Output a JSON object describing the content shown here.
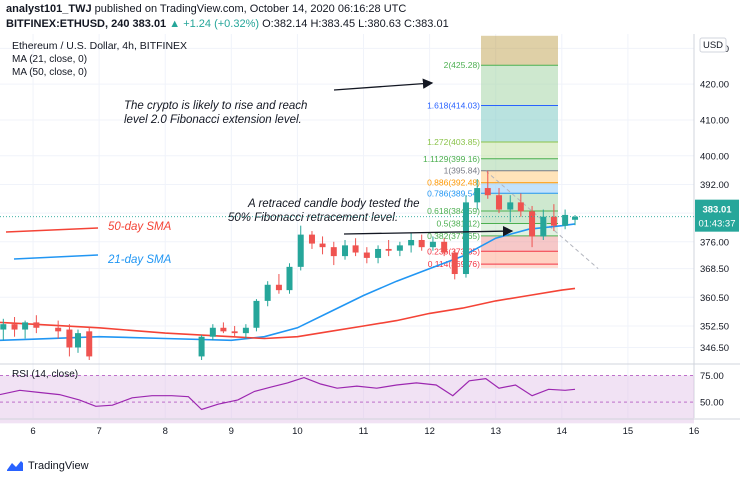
{
  "header": {
    "author": "analyst101_TWJ",
    "published_text": "published on TradingView.com, October 14, 2020 06:16:28 UTC",
    "symbol": "BITFINEX:ETHUSD, 240",
    "last": "383.01",
    "change": "+1.24 (+0.32%)",
    "o": "O:382.14",
    "h": "H:383.45",
    "l": "L:380.63",
    "c": "C:383.01"
  },
  "legend": {
    "title": "Ethereum / U.S. Dollar, 4h, BITFINEX",
    "ma21": "MA (21, close, 0)",
    "ma50": "MA (50, close, 0)"
  },
  "annotations": {
    "rise_line1": "The crypto is likely to rise and reach",
    "rise_line2": "level 2.0 Fibonacci extension level.",
    "retrace_line1": "A retraced candle body tested the",
    "retrace_line2": "50% Fibonacci retracement level.",
    "sma50": "50-day SMA",
    "sma21": "21-day SMA"
  },
  "price_tag": {
    "value": "383.01",
    "timer": "01:43:37"
  },
  "rsi": {
    "label": "RSI (14, close)",
    "ticks": [
      {
        "v": 75,
        "label": "75.00"
      },
      {
        "v": 50,
        "label": "50.00"
      }
    ]
  },
  "footer": {
    "brand": "TradingView"
  },
  "chart_data": {
    "type": "candlestick",
    "currency": "USD",
    "x_ticks": [
      6,
      7,
      8,
      9,
      10,
      11,
      12,
      13,
      14,
      15,
      16
    ],
    "y_ticks": [
      346.5,
      352.5,
      360.5,
      368.5,
      376.0,
      384.0,
      392.0,
      400.0,
      410.0,
      420.0,
      430.0
    ],
    "ylim": [
      343,
      434
    ],
    "xlim": [
      5.5,
      16.0
    ],
    "candles": [
      {
        "t": 5.55,
        "o": 351.5,
        "h": 354.5,
        "l": 348.5,
        "c": 353.0
      },
      {
        "t": 5.72,
        "o": 353.0,
        "h": 355.0,
        "l": 349.5,
        "c": 351.5
      },
      {
        "t": 5.88,
        "o": 351.5,
        "h": 354.0,
        "l": 349.0,
        "c": 353.5
      },
      {
        "t": 6.05,
        "o": 353.5,
        "h": 355.5,
        "l": 350.5,
        "c": 352.0
      },
      {
        "t": 6.38,
        "o": 352.0,
        "h": 354.0,
        "l": 349.0,
        "c": 351.0
      },
      {
        "t": 6.55,
        "o": 351.5,
        "h": 353.0,
        "l": 344.0,
        "c": 346.5
      },
      {
        "t": 6.68,
        "o": 346.5,
        "h": 351.5,
        "l": 345.0,
        "c": 350.5
      },
      {
        "t": 6.85,
        "o": 351.0,
        "h": 352.0,
        "l": 343.0,
        "c": 344.0
      },
      {
        "t": 8.55,
        "o": 344.0,
        "h": 350.0,
        "l": 343.0,
        "c": 349.5
      },
      {
        "t": 8.72,
        "o": 349.5,
        "h": 353.0,
        "l": 348.5,
        "c": 352.0
      },
      {
        "t": 8.88,
        "o": 352.0,
        "h": 353.5,
        "l": 350.5,
        "c": 351.0
      },
      {
        "t": 9.05,
        "o": 351.0,
        "h": 352.5,
        "l": 349.5,
        "c": 350.5
      },
      {
        "t": 9.22,
        "o": 350.5,
        "h": 353.0,
        "l": 349.0,
        "c": 352.0
      },
      {
        "t": 9.38,
        "o": 352.0,
        "h": 360.0,
        "l": 351.0,
        "c": 359.5
      },
      {
        "t": 9.55,
        "o": 359.5,
        "h": 365.0,
        "l": 358.0,
        "c": 364.0
      },
      {
        "t": 9.72,
        "o": 364.0,
        "h": 367.0,
        "l": 361.5,
        "c": 362.5
      },
      {
        "t": 9.88,
        "o": 362.5,
        "h": 370.0,
        "l": 361.5,
        "c": 369.0
      },
      {
        "t": 10.05,
        "o": 369.0,
        "h": 380.5,
        "l": 368.0,
        "c": 378.0
      },
      {
        "t": 10.22,
        "o": 378.0,
        "h": 379.0,
        "l": 374.0,
        "c": 375.5
      },
      {
        "t": 10.38,
        "o": 375.5,
        "h": 377.5,
        "l": 372.5,
        "c": 374.5
      },
      {
        "t": 10.55,
        "o": 374.5,
        "h": 376.0,
        "l": 369.5,
        "c": 372.0
      },
      {
        "t": 10.72,
        "o": 372.0,
        "h": 376.5,
        "l": 371.0,
        "c": 375.0
      },
      {
        "t": 10.88,
        "o": 375.0,
        "h": 377.0,
        "l": 372.0,
        "c": 373.0
      },
      {
        "t": 11.05,
        "o": 373.0,
        "h": 374.5,
        "l": 370.0,
        "c": 371.5
      },
      {
        "t": 11.22,
        "o": 371.5,
        "h": 375.0,
        "l": 370.0,
        "c": 374.0
      },
      {
        "t": 11.38,
        "o": 374.0,
        "h": 376.5,
        "l": 372.0,
        "c": 373.5
      },
      {
        "t": 11.55,
        "o": 373.5,
        "h": 376.0,
        "l": 372.0,
        "c": 375.0
      },
      {
        "t": 11.72,
        "o": 375.0,
        "h": 378.5,
        "l": 373.0,
        "c": 376.5
      },
      {
        "t": 11.88,
        "o": 376.5,
        "h": 378.0,
        "l": 373.5,
        "c": 374.5
      },
      {
        "t": 12.05,
        "o": 374.5,
        "h": 377.5,
        "l": 373.5,
        "c": 376.0
      },
      {
        "t": 12.22,
        "o": 376.0,
        "h": 377.0,
        "l": 372.0,
        "c": 373.0
      },
      {
        "t": 12.38,
        "o": 373.0,
        "h": 374.0,
        "l": 365.5,
        "c": 367.0
      },
      {
        "t": 12.55,
        "o": 367.0,
        "h": 389.0,
        "l": 366.0,
        "c": 387.0
      },
      {
        "t": 12.72,
        "o": 387.0,
        "h": 393.5,
        "l": 385.0,
        "c": 391.0
      },
      {
        "t": 12.88,
        "o": 391.0,
        "h": 395.8,
        "l": 388.0,
        "c": 389.0
      },
      {
        "t": 13.05,
        "o": 389.0,
        "h": 391.0,
        "l": 384.0,
        "c": 385.0
      },
      {
        "t": 13.22,
        "o": 385.0,
        "h": 389.0,
        "l": 381.5,
        "c": 387.0
      },
      {
        "t": 13.38,
        "o": 387.0,
        "h": 389.5,
        "l": 383.0,
        "c": 384.5
      },
      {
        "t": 13.55,
        "o": 384.5,
        "h": 386.0,
        "l": 374.5,
        "c": 377.5
      },
      {
        "t": 13.72,
        "o": 377.5,
        "h": 385.0,
        "l": 376.5,
        "c": 383.0
      },
      {
        "t": 13.88,
        "o": 383.0,
        "h": 386.5,
        "l": 379.0,
        "c": 380.5
      },
      {
        "t": 14.05,
        "o": 380.5,
        "h": 385.0,
        "l": 379.5,
        "c": 383.5
      },
      {
        "t": 14.2,
        "o": 382.14,
        "h": 383.45,
        "l": 380.63,
        "c": 383.01
      }
    ],
    "series": [
      {
        "name": "MA (21, close, 0)",
        "color": "#2196f3",
        "points": [
          [
            5.5,
            348.5
          ],
          [
            6.0,
            348.8
          ],
          [
            7.0,
            349.5
          ],
          [
            8.0,
            349.0
          ],
          [
            9.0,
            348.5
          ],
          [
            9.5,
            349.5
          ],
          [
            10.0,
            352.0
          ],
          [
            10.5,
            356.5
          ],
          [
            11.0,
            361.0
          ],
          [
            11.5,
            365.0
          ],
          [
            12.0,
            368.5
          ],
          [
            12.5,
            372.0
          ],
          [
            13.0,
            377.0
          ],
          [
            13.5,
            379.5
          ],
          [
            14.0,
            380.5
          ],
          [
            14.2,
            381.0
          ]
        ]
      },
      {
        "name": "MA (50, close, 0)",
        "color": "#f44336",
        "points": [
          [
            5.5,
            353.5
          ],
          [
            6.0,
            353.0
          ],
          [
            7.0,
            352.0
          ],
          [
            8.0,
            350.5
          ],
          [
            9.0,
            349.5
          ],
          [
            9.5,
            349.0
          ],
          [
            10.0,
            349.5
          ],
          [
            10.5,
            351.0
          ],
          [
            11.0,
            352.5
          ],
          [
            11.5,
            354.0
          ],
          [
            12.0,
            356.0
          ],
          [
            12.5,
            357.5
          ],
          [
            13.0,
            359.5
          ],
          [
            13.5,
            361.0
          ],
          [
            14.0,
            362.5
          ],
          [
            14.2,
            363.0
          ]
        ]
      }
    ],
    "fib_levels": [
      {
        "ratio": "2",
        "value": 425.28,
        "label": "2(425.28)",
        "color": "#4caf50"
      },
      {
        "ratio": "1.618",
        "value": 414.03,
        "label": "1.618(414.03)",
        "color": "#2962ff"
      },
      {
        "ratio": "1.272",
        "value": 403.85,
        "label": "1.272(403.85)",
        "color": "#8bc34a"
      },
      {
        "ratio": "1.1129",
        "value": 399.16,
        "label": "1.1129(399.16)",
        "color": "#4caf50"
      },
      {
        "ratio": "1",
        "value": 395.84,
        "label": "1(395.84)",
        "color": "#787b86"
      },
      {
        "ratio": "0.886",
        "value": 392.48,
        "label": "0.886(392.48)",
        "color": "#ff9800"
      },
      {
        "ratio": "0.786",
        "value": 389.54,
        "label": "0.786(389.54)",
        "color": "#2196f3"
      },
      {
        "ratio": "0.618",
        "value": 384.59,
        "label": "0.618(384.59)",
        "color": "#4caf50"
      },
      {
        "ratio": "0.5",
        "value": 381.12,
        "label": "0.5(381.12)",
        "color": "#4caf50"
      },
      {
        "ratio": "0.382",
        "value": 377.65,
        "label": "0.382(377.65)",
        "color": "#4caf50"
      },
      {
        "ratio": "0.236",
        "value": 373.35,
        "label": "0.236(373.35)",
        "color": "#f23645"
      },
      {
        "ratio": "0.114",
        "value": 369.76,
        "label": "0.114(369.76)",
        "color": "#f23645"
      }
    ],
    "rsi_values": [
      [
        5.5,
        57
      ],
      [
        5.8,
        61
      ],
      [
        6.1,
        59
      ],
      [
        6.4,
        57
      ],
      [
        6.7,
        52
      ],
      [
        6.95,
        46
      ],
      [
        7.2,
        47
      ],
      [
        7.5,
        54
      ],
      [
        7.8,
        56
      ],
      [
        8.1,
        56
      ],
      [
        8.35,
        55
      ],
      [
        8.55,
        43
      ],
      [
        8.8,
        48
      ],
      [
        9.1,
        52
      ],
      [
        9.35,
        60
      ],
      [
        9.6,
        64
      ],
      [
        9.85,
        68
      ],
      [
        10.1,
        73
      ],
      [
        10.35,
        67
      ],
      [
        10.6,
        63
      ],
      [
        10.9,
        65
      ],
      [
        11.2,
        63
      ],
      [
        11.5,
        66
      ],
      [
        11.8,
        68
      ],
      [
        12.1,
        66
      ],
      [
        12.35,
        56
      ],
      [
        12.6,
        70
      ],
      [
        12.85,
        72
      ],
      [
        13.05,
        63
      ],
      [
        13.3,
        66
      ],
      [
        13.55,
        56
      ],
      [
        13.8,
        62
      ],
      [
        14.05,
        61
      ],
      [
        14.2,
        62
      ]
    ],
    "colors": {
      "up": "#26a69a",
      "down": "#ef5350",
      "fib_bg_top": "#b8963b",
      "fib_bg_green": "#4caf50",
      "rsi_band": "#9c27b0"
    }
  }
}
